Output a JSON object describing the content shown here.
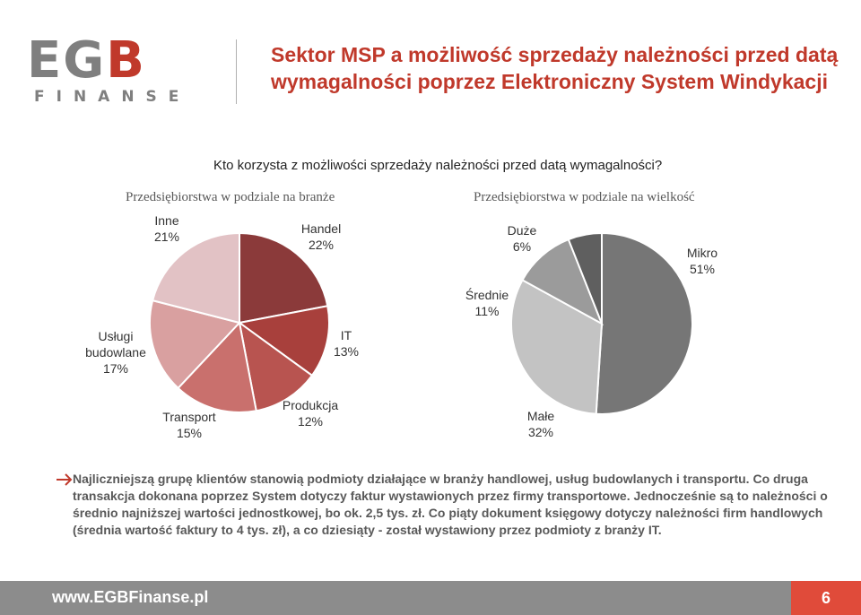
{
  "logo": {
    "main_a": "EG",
    "main_b": "B",
    "sub": "FINANSE"
  },
  "title": "Sektor MSP a możliwość sprzedaży należności przed datą wymagalności poprzez Elektroniczny System Windykacji",
  "question": "Kto korzysta z możliwości sprzedaży należności przed datą wymagalności?",
  "chart_data": [
    {
      "type": "pie",
      "title": "Przedsiębiorstwa w podziale na branże",
      "slices": [
        {
          "label": "Handel",
          "value": 22,
          "value_text": "22%",
          "color": "#8b3a3a"
        },
        {
          "label": "IT",
          "value": 13,
          "value_text": "13%",
          "color": "#a8403c"
        },
        {
          "label": "Produkcja",
          "value": 12,
          "value_text": "12%",
          "color": "#b85450"
        },
        {
          "label": "Transport",
          "value": 15,
          "value_text": "15%",
          "color": "#c9706d"
        },
        {
          "label": "Usługi budowlane",
          "value": 17,
          "value_text": "17%",
          "color": "#d9a0a0"
        },
        {
          "label": "Inne",
          "value": 21,
          "value_text": "21%",
          "color": "#e2c2c5"
        }
      ]
    },
    {
      "type": "pie",
      "title": "Przedsiębiorstwa w podziale na wielkość",
      "slices": [
        {
          "label": "Mikro",
          "value": 51,
          "value_text": "51%",
          "color": "#767676"
        },
        {
          "label": "Małe",
          "value": 32,
          "value_text": "32%",
          "color": "#c3c3c3"
        },
        {
          "label": "Średnie",
          "value": 11,
          "value_text": "11%",
          "color": "#9b9b9b"
        },
        {
          "label": "Duże",
          "value": 6,
          "value_text": "6%",
          "color": "#5f5f5f"
        }
      ]
    }
  ],
  "note": "Najliczniejszą grupę klientów stanowią podmioty działające w branży handlowej, usług budowlanych i transportu. Co druga transakcja dokonana poprzez System dotyczy faktur wystawionych przez firmy transportowe. Jednocześnie są to należności o średnio najniższej wartości jednostkowej, bo ok. 2,5 tys. zł. Co piąty dokument księgowy dotyczy należności firm handlowych (średnia wartość faktury to 4 tys. zł), a co dziesiąty - został wystawiony przez podmioty z branży IT.",
  "footer": {
    "url": "www.EGBFinanse.pl",
    "page": "6"
  },
  "colors": {
    "accent": "#c0392b",
    "footer_bg": "#8c8c8c",
    "page_box": "#e04b3a"
  }
}
